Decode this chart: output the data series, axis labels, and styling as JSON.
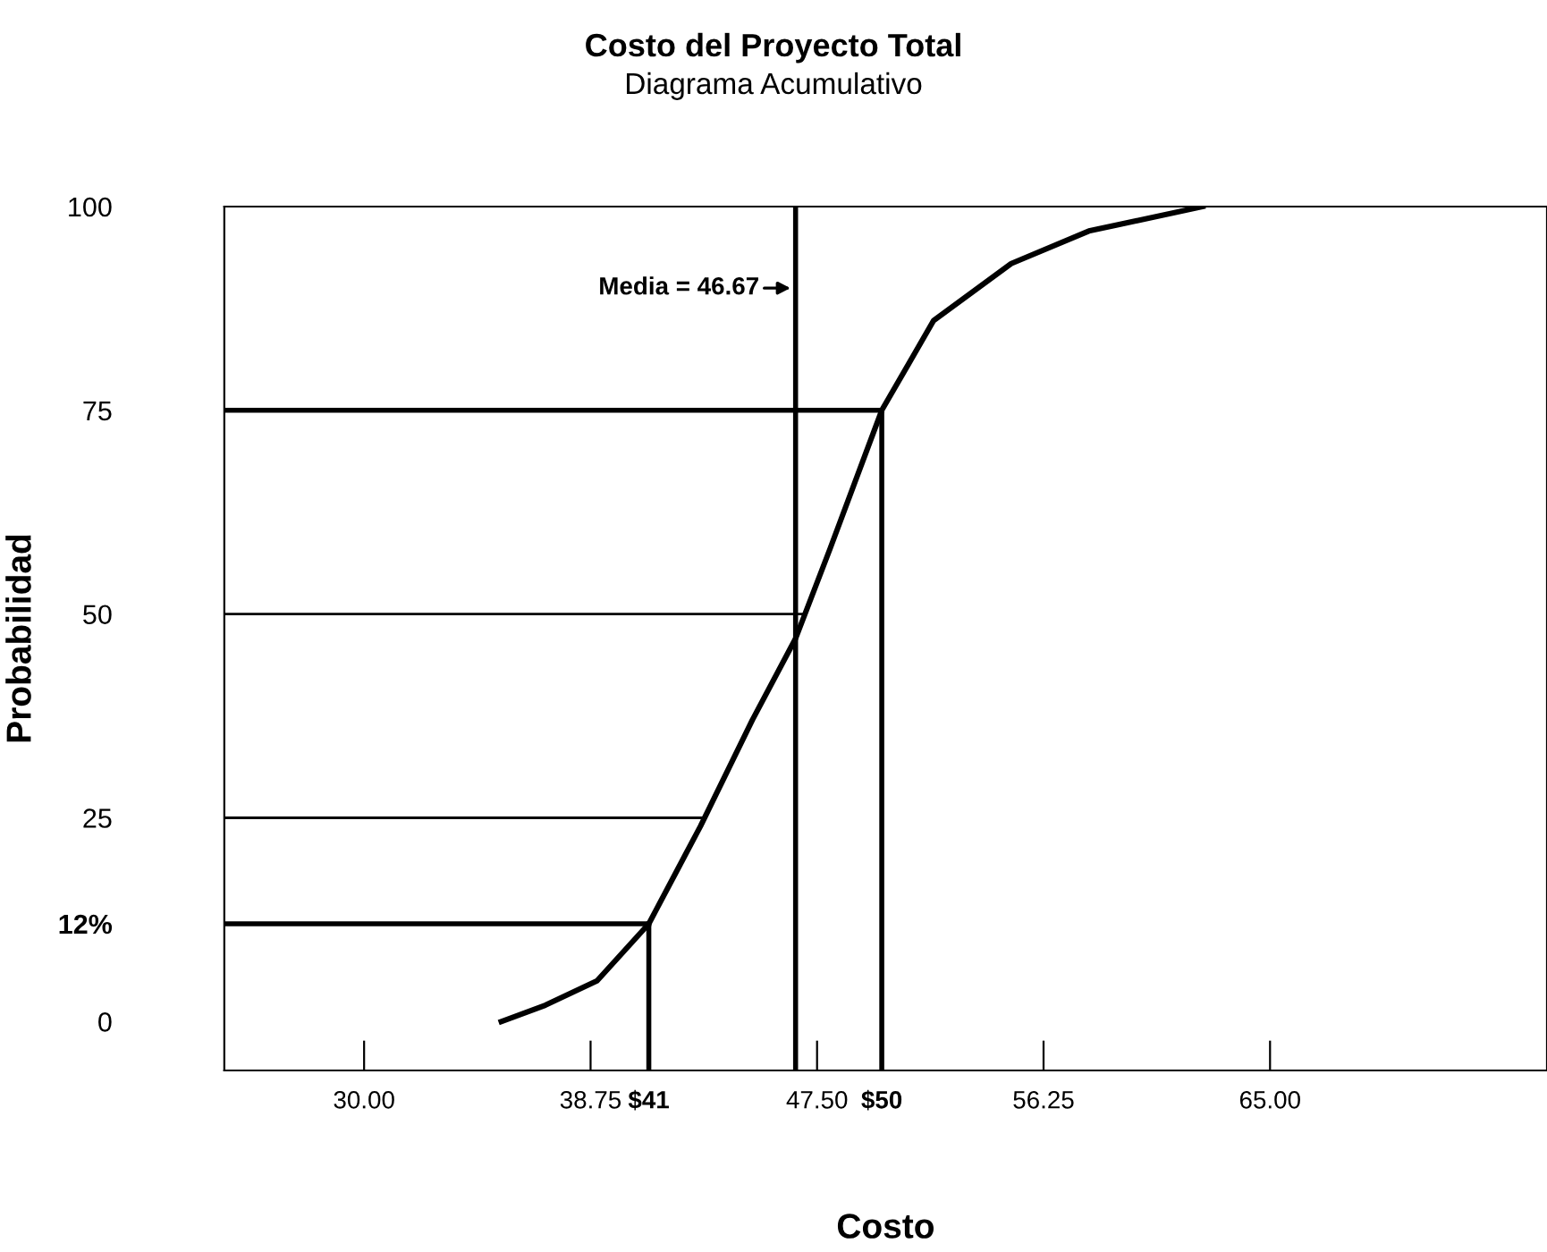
{
  "chart_data": {
    "type": "line",
    "title": "Costo del Proyecto Total",
    "subtitle": "Diagrama Acumulativo",
    "xlabel": "Costo",
    "ylabel": "Probabilidad",
    "x": [
      35.3,
      37,
      39,
      41,
      43,
      45,
      46.67,
      48,
      50,
      52,
      55,
      58,
      62.4
    ],
    "series": [
      {
        "color": "#000000",
        "values": [
          0,
          2,
          5,
          12,
          24,
          37,
          47,
          58,
          75,
          86,
          93,
          97,
          100
        ]
      }
    ],
    "xlim": [
      24.6,
      75.7
    ],
    "ylim": [
      -6,
      100
    ],
    "xticks": [
      {
        "value": 30,
        "label": "30.00"
      },
      {
        "value": 38.75,
        "label": "38.75"
      },
      {
        "value": 41,
        "label": "$41"
      },
      {
        "value": 47.5,
        "label": "47.50"
      },
      {
        "value": 50,
        "label": "$50"
      },
      {
        "value": 56.25,
        "label": "56.25"
      },
      {
        "value": 65,
        "label": "65.00"
      }
    ],
    "yticks": [
      0,
      {
        "value": 12,
        "label": "12%"
      },
      25,
      50,
      75,
      100
    ],
    "ref_lines": [
      {
        "axis": "y",
        "value": 75,
        "label": null
      },
      {
        "axis": "y",
        "value": 50,
        "label": null
      },
      {
        "axis": "y",
        "value": 25,
        "label": null
      },
      {
        "axis": "y",
        "value": 12,
        "label": null
      },
      {
        "axis": "x",
        "value": 41,
        "label": null
      },
      {
        "axis": "x",
        "value": 50,
        "label": null
      },
      {
        "axis": "x",
        "value": 46.67,
        "label": "Media = 46.67"
      }
    ],
    "grid": false,
    "marker": "none",
    "line_style": "solid"
  }
}
